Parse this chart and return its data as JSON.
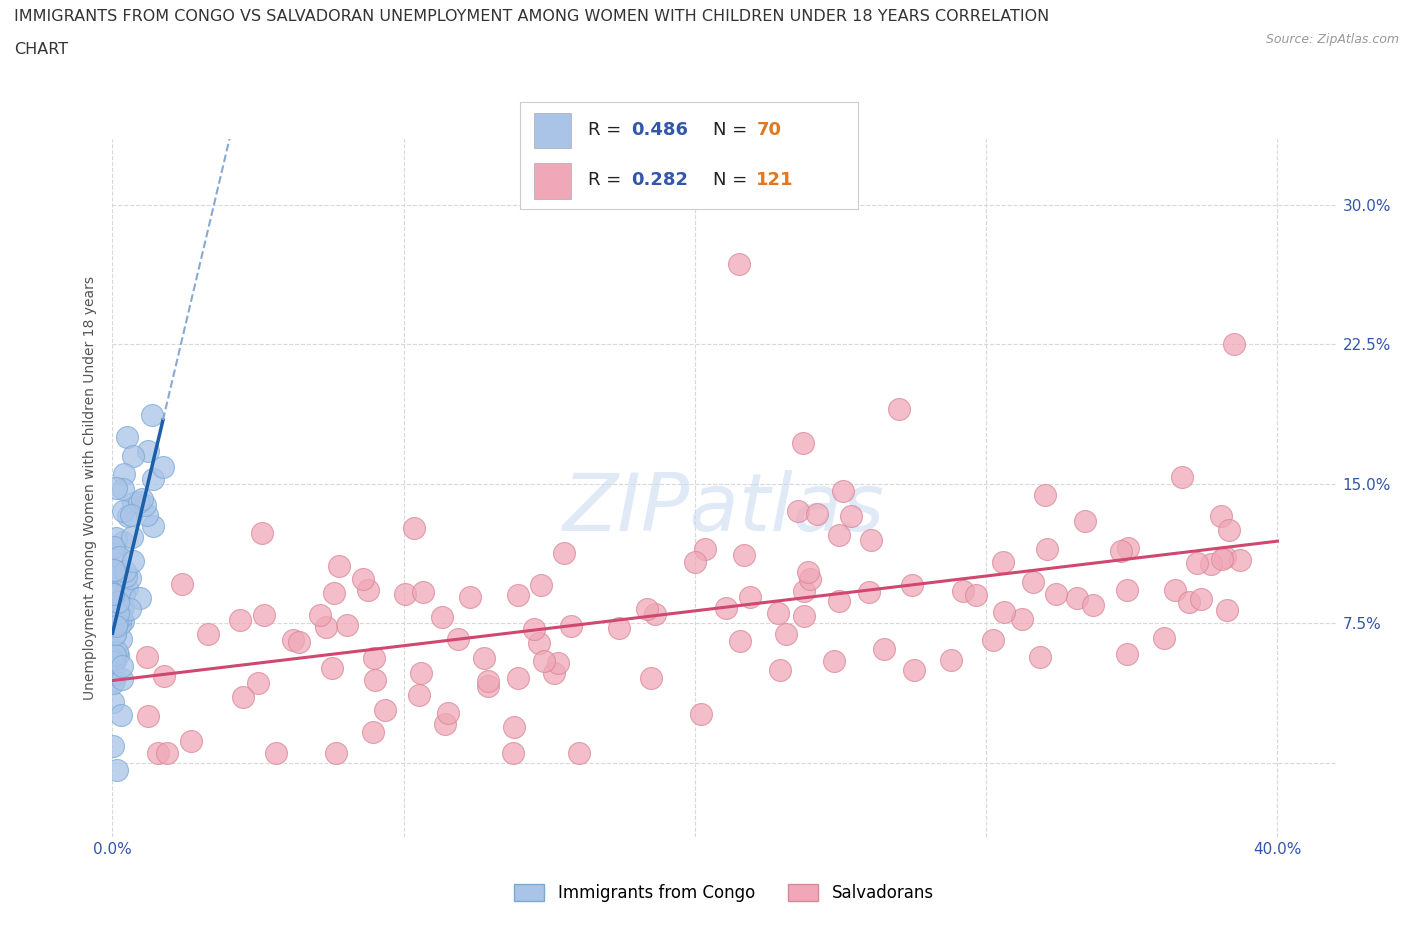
{
  "title_line1": "IMMIGRANTS FROM CONGO VS SALVADORAN UNEMPLOYMENT AMONG WOMEN WITH CHILDREN UNDER 18 YEARS CORRELATION",
  "title_line2": "CHART",
  "source_text": "Source: ZipAtlas.com",
  "ylabel": "Unemployment Among Women with Children Under 18 years",
  "xlim": [
    0.0,
    0.42
  ],
  "ylim": [
    -0.04,
    0.335
  ],
  "xticks": [
    0.0,
    0.1,
    0.2,
    0.3,
    0.4
  ],
  "xticklabels": [
    "0.0%",
    "",
    "",
    "",
    "40.0%"
  ],
  "yticks": [
    0.0,
    0.075,
    0.15,
    0.225,
    0.3
  ],
  "yticklabels": [
    "",
    "7.5%",
    "15.0%",
    "22.5%",
    "30.0%"
  ],
  "blue_R": 0.486,
  "blue_N": 70,
  "pink_R": 0.282,
  "pink_N": 121,
  "blue_fill_color": "#aac4e8",
  "blue_edge_color": "#7aaad4",
  "blue_line_color": "#1a5fa8",
  "blue_dash_color": "#88aad0",
  "pink_fill_color": "#f0a8b8",
  "pink_edge_color": "#d88898",
  "pink_line_color": "#d04870",
  "watermark_color": "#c8d8f0",
  "background_color": "#ffffff",
  "grid_color": "#d8d8d8",
  "tick_label_color": "#3355aa",
  "legend_R_color": "#3355aa",
  "legend_N_color": "#e07820",
  "title_color": "#333333",
  "ylabel_color": "#555555"
}
